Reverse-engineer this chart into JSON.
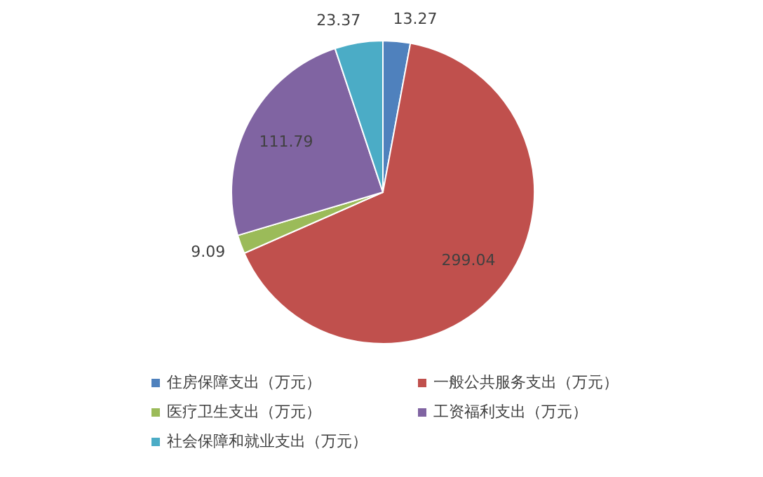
{
  "chart_data": {
    "type": "pie",
    "categories": [
      "住房保障支出（万元）",
      "一般公共服务支出（万元）",
      "医疗卫生支出（万元）",
      "工资福利支出（万元）",
      "社会保障和就业支出（万元）"
    ],
    "values": [
      13.27,
      299.04,
      9.09,
      111.79,
      23.37
    ],
    "colors": [
      "#4f81bd",
      "#c0504d",
      "#9bbb59",
      "#8064a2",
      "#4bacc6"
    ],
    "data_labels": true,
    "legend": "bottom"
  }
}
